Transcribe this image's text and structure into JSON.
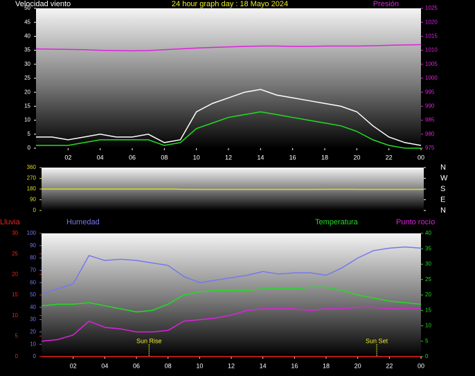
{
  "chart_data": [
    {
      "type": "line",
      "title": "24 hour graph day : 18 Mayo 2024",
      "y_label": "Velocidad viento",
      "y2_label": "Presión",
      "x": [
        0,
        1,
        2,
        3,
        4,
        5,
        6,
        7,
        8,
        9,
        10,
        11,
        12,
        13,
        14,
        15,
        16,
        17,
        18,
        19,
        20,
        21,
        22,
        23,
        24
      ],
      "xlim": [
        0,
        24
      ],
      "xticks": [
        {
          "value": 2,
          "label": "02"
        },
        {
          "value": 4,
          "label": "04"
        },
        {
          "value": 6,
          "label": "06"
        },
        {
          "value": 8,
          "label": "08"
        },
        10,
        12,
        14,
        16,
        18,
        20,
        22,
        {
          "value": 24,
          "label": "00"
        }
      ],
      "ylim": [
        0,
        50
      ],
      "yticks": [
        0,
        5,
        10,
        15,
        20,
        25,
        30,
        35,
        40,
        45,
        50
      ],
      "y2lim": [
        975,
        1025
      ],
      "y2ticks": [
        975,
        980,
        985,
        990,
        995,
        1000,
        1005,
        1010,
        1015,
        1020,
        1025
      ],
      "series": [
        {
          "color": "#ffffff",
          "axis": "y",
          "values": [
            4,
            4,
            3,
            4,
            5,
            4,
            4,
            5,
            2,
            3,
            13,
            16,
            18,
            20,
            21,
            19,
            18,
            17,
            16,
            15,
            13,
            8,
            4,
            2,
            1
          ]
        },
        {
          "color": "#22dd22",
          "axis": "y",
          "values": [
            1,
            1,
            1,
            2,
            3,
            3,
            3,
            3,
            1,
            2,
            7,
            9,
            11,
            12,
            13,
            12,
            11,
            10,
            9,
            8,
            6,
            3,
            1,
            0,
            0
          ]
        },
        {
          "color": "#dd22dd",
          "axis": "y2",
          "values": [
            1010.5,
            1010.4,
            1010.3,
            1010.2,
            1010,
            1009.9,
            1009.8,
            1009.9,
            1010.2,
            1010.5,
            1010.8,
            1011,
            1011.2,
            1011.4,
            1011.5,
            1011.5,
            1011.4,
            1011.4,
            1011.5,
            1011.5,
            1011.5,
            1011.6,
            1011.8,
            1011.9,
            1012
          ]
        }
      ]
    },
    {
      "type": "line",
      "x": [
        0,
        1,
        2,
        3,
        4,
        5,
        6,
        7,
        8,
        9,
        10,
        11,
        12,
        13,
        14,
        15,
        16,
        17,
        18,
        19,
        20,
        21,
        22,
        23,
        24
      ],
      "xlim": [
        0,
        24
      ],
      "ylim": [
        0,
        360
      ],
      "yticks": [
        0,
        90,
        180,
        270,
        360
      ],
      "y2lim": [
        0,
        360
      ],
      "y2ticks": [
        {
          "value": 360,
          "label": "N"
        },
        {
          "value": 270,
          "label": "W"
        },
        {
          "value": 180,
          "label": "S"
        },
        {
          "value": 90,
          "label": "E"
        },
        {
          "value": 0,
          "label": "N"
        }
      ],
      "series": [
        {
          "color": "#dddd22",
          "axis": "y",
          "values": [
            180,
            180,
            180,
            180,
            180,
            180,
            180,
            180,
            180,
            178,
            177,
            177,
            177,
            177,
            177,
            177,
            177,
            177,
            178,
            178,
            177,
            177,
            177,
            177,
            177
          ]
        }
      ]
    },
    {
      "type": "line",
      "x": [
        0,
        1,
        2,
        3,
        4,
        5,
        6,
        7,
        8,
        9,
        10,
        11,
        12,
        13,
        14,
        15,
        16,
        17,
        18,
        19,
        20,
        21,
        22,
        23,
        24
      ],
      "xlim": [
        0,
        24
      ],
      "xticks": [
        {
          "value": 2,
          "label": "02"
        },
        {
          "value": 4,
          "label": "04"
        },
        {
          "value": 6,
          "label": "06"
        },
        {
          "value": 8,
          "label": "08"
        },
        10,
        12,
        14,
        16,
        18,
        20,
        22,
        {
          "value": 24,
          "label": "00"
        }
      ],
      "ylim": [
        0,
        100
      ],
      "yticks": [
        0,
        10,
        20,
        30,
        40,
        50,
        60,
        70,
        80,
        90,
        100
      ],
      "y2lim": [
        0,
        40
      ],
      "y2ticks": [
        0,
        5,
        10,
        15,
        20,
        25,
        30,
        35,
        40
      ],
      "y3lim": [
        0,
        30
      ],
      "y3ticks": [
        0,
        5,
        10,
        15,
        20,
        25,
        30
      ],
      "series": [
        {
          "name": "Lluvia",
          "color": "#ee2222",
          "axis": "y3",
          "values": [
            0,
            0,
            0,
            0,
            0,
            0,
            0,
            0,
            0,
            0,
            0,
            0,
            0,
            0,
            0,
            0,
            0,
            0,
            0,
            0,
            0,
            0,
            0,
            0,
            0
          ]
        },
        {
          "name": "Humedad",
          "color": "#7777ee",
          "axis": "y",
          "values": [
            51,
            55,
            59,
            82,
            78,
            79,
            78,
            76,
            74,
            65,
            60,
            62,
            64,
            66,
            69,
            67,
            68,
            68,
            66,
            72,
            80,
            86,
            88,
            89,
            88
          ]
        },
        {
          "name": "Temperatura",
          "color": "#22dd22",
          "axis": "y2",
          "values": [
            16.5,
            17,
            17,
            17.5,
            16.5,
            15.5,
            14.5,
            15,
            17,
            20,
            21,
            21.5,
            21.5,
            21.5,
            22,
            22,
            22,
            22.5,
            22.5,
            21.5,
            20,
            19,
            18,
            17.5,
            17
          ]
        },
        {
          "name": "Punto rocío",
          "color": "#dd22dd",
          "axis": "y2",
          "values": [
            5,
            5.5,
            7,
            11.5,
            9.5,
            9,
            8,
            8,
            8.5,
            11.5,
            12,
            12.5,
            13.5,
            15,
            15.5,
            15.5,
            15.5,
            15,
            15.5,
            15.5,
            16,
            16,
            15.5,
            15.5,
            15.5
          ]
        }
      ],
      "annotations": [
        {
          "text": "Sun Rise",
          "x": 6.8
        },
        {
          "text": "Sun Set",
          "x": 21.2
        }
      ]
    }
  ]
}
